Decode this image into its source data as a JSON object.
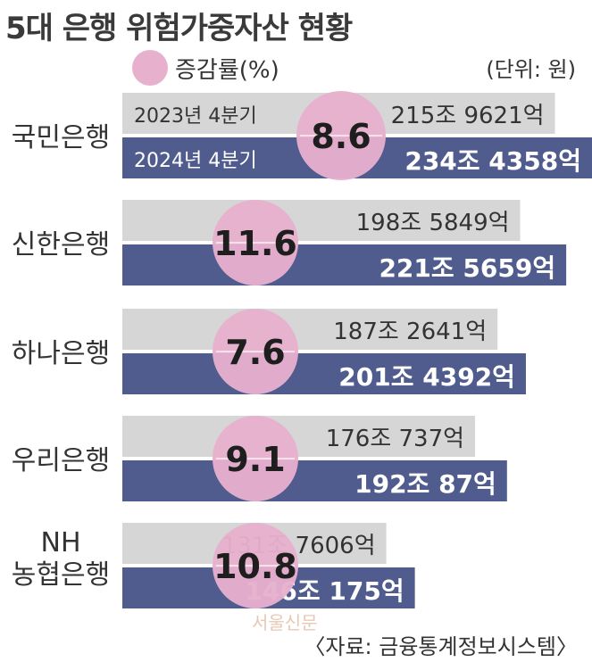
{
  "title": "5대 은행 위험가중자산 현황",
  "legend": {
    "label": "증감률(%)",
    "color": "#e7b0cd"
  },
  "unit": "(단위: 원)",
  "source": "〈자료: 금융통계정보시스템〉",
  "watermark": "서울신문",
  "colors": {
    "bar_2023": "#d6d6d6",
    "bar_2024": "#505c8e",
    "circle": "#e7b0cd"
  },
  "chart_data": {
    "type": "bar",
    "orientation": "horizontal",
    "categories": [
      "국민은행",
      "신한은행",
      "하나은행",
      "우리은행",
      "NH 농협은행"
    ],
    "series": [
      {
        "name": "2023년 4분기",
        "values": [
          215.9621,
          198.5849,
          187.2641,
          176.0737,
          131.7606
        ],
        "labels": [
          "215조 9621억",
          "198조 5849억",
          "187조 2641억",
          "176조 737억",
          "131조 7606억"
        ]
      },
      {
        "name": "2024년 4분기",
        "values": [
          234.4358,
          221.5659,
          201.4392,
          192.0087,
          146.0175
        ],
        "labels": [
          "234조 4358억",
          "221조 5659억",
          "201조 4392억",
          "192조  87억",
          "146조 175억"
        ]
      }
    ],
    "growth_rate": [
      8.6,
      11.6,
      7.6,
      9.1,
      10.8
    ],
    "growth_labels": [
      "8.6",
      "11.6",
      "7.6",
      "9.1",
      "10.8"
    ],
    "xlim": [
      0,
      234.4358
    ]
  }
}
